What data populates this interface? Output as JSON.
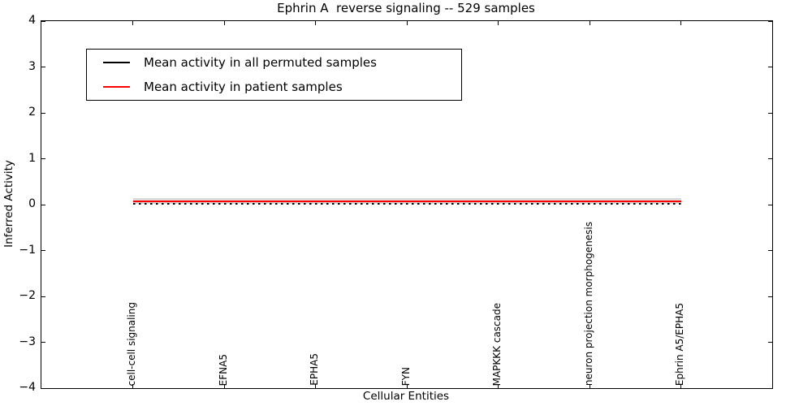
{
  "chart": {
    "title": "Ephrin A  reverse signaling -- 529 samples",
    "xlabel": "Cellular Entities",
    "ylabel": "Inferred Activity"
  },
  "chart_data": {
    "type": "line",
    "title": "Ephrin A  reverse signaling -- 529 samples",
    "xlabel": "Cellular Entities",
    "ylabel": "Inferred Activity",
    "categories": [
      "cell-cell signaling",
      "EFNA5",
      "EPHA5",
      "FYN",
      "MAPKKK cascade",
      "neuron projection morphogenesis",
      "Ephrin A5/EPHA5"
    ],
    "series": [
      {
        "name": "Mean activity in all permuted samples",
        "color": "#000000",
        "style": "dotted",
        "values": [
          0.02,
          0.02,
          0.02,
          0.02,
          0.02,
          0.02,
          0.02
        ]
      },
      {
        "name": "Mean activity in patient samples",
        "color": "#ff0000",
        "style": "solid",
        "values": [
          0.07,
          0.07,
          0.07,
          0.07,
          0.07,
          0.07,
          0.07
        ]
      }
    ],
    "band": {
      "color": "#d9d9d9",
      "lower": 0.02,
      "upper": 0.15
    },
    "ylim": [
      -4,
      4
    ],
    "xlim": [
      -1,
      7
    ],
    "yticks": [
      4,
      3,
      2,
      1,
      0,
      -1,
      -2,
      -3,
      -4
    ],
    "grid": false,
    "legend_position": "upper left",
    "background": "#ffffff",
    "axis_color": "#000000"
  }
}
